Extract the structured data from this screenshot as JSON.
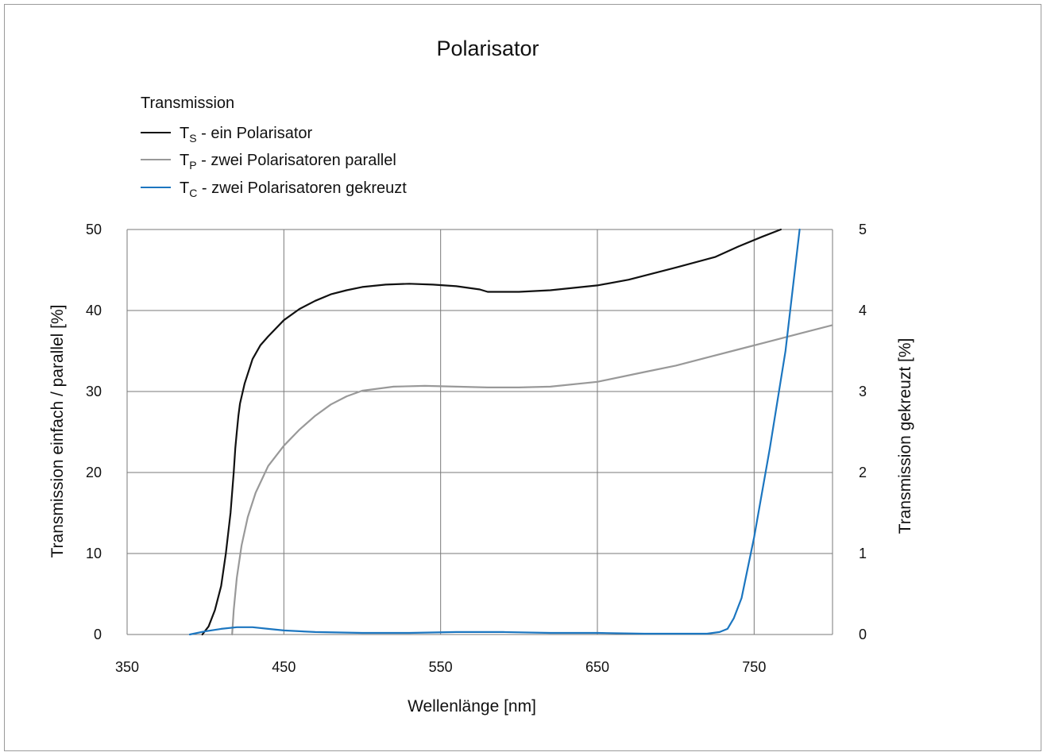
{
  "chart_data": {
    "type": "line",
    "title": "Polarisator",
    "legend_title": "Transmission",
    "legend_placement": "top-left",
    "xlabel": "Wellenlänge [nm]",
    "ylabel": "Transmission einfach / parallel [%]",
    "y2label": "Transmission gekreuzt [%]",
    "xlim": [
      350,
      800
    ],
    "ylim": [
      0,
      50
    ],
    "y2lim": [
      0,
      5
    ],
    "xticks": [
      "350",
      "450",
      "550",
      "650",
      "750"
    ],
    "yticks": [
      "0",
      "10",
      "20",
      "30",
      "40",
      "50"
    ],
    "y2ticks": [
      "0",
      "1",
      "2",
      "3",
      "4",
      "5"
    ],
    "grid": true,
    "series": [
      {
        "key": "ts",
        "main": "T",
        "sub": "S",
        "rest": " - ein Polarisator",
        "color": "#111111",
        "axis": "left",
        "x": [
          398,
          402,
          406,
          410,
          413,
          416,
          418,
          419,
          420,
          421,
          422,
          425,
          430,
          435,
          440,
          450,
          460,
          470,
          480,
          490,
          500,
          515,
          530,
          545,
          560,
          575,
          580,
          600,
          620,
          650,
          670,
          700,
          725,
          740,
          755,
          767
        ],
        "y": [
          0,
          1,
          3,
          6,
          10,
          15,
          20,
          23,
          25,
          27,
          28.5,
          31,
          34,
          35.7,
          36.8,
          38.8,
          40.2,
          41.2,
          42,
          42.5,
          42.9,
          43.2,
          43.3,
          43.2,
          43,
          42.6,
          42.3,
          42.3,
          42.5,
          43.1,
          43.8,
          45.3,
          46.6,
          47.9,
          49.1,
          50
        ]
      },
      {
        "key": "tp",
        "main": "T",
        "sub": "P",
        "rest": " - zwei Polarisatoren parallel",
        "color": "#999999",
        "axis": "left",
        "x": [
          417,
          418,
          420,
          423,
          427,
          432,
          440,
          450,
          460,
          470,
          480,
          490,
          500,
          520,
          540,
          560,
          580,
          600,
          620,
          650,
          680,
          700,
          720,
          740,
          760,
          780,
          800
        ],
        "y": [
          0,
          3,
          7,
          11,
          14.5,
          17.5,
          20.8,
          23.3,
          25.3,
          27,
          28.4,
          29.4,
          30.1,
          30.6,
          30.7,
          30.6,
          30.5,
          30.5,
          30.6,
          31.2,
          32.4,
          33.2,
          34.2,
          35.2,
          36.2,
          37.2,
          38.2
        ]
      },
      {
        "key": "tc",
        "main": "T",
        "sub": "C",
        "rest": " - zwei Polarisatoren gekreuzt",
        "color": "#1c76c0",
        "axis": "right",
        "x": [
          390,
          400,
          410,
          420,
          430,
          440,
          450,
          470,
          500,
          530,
          560,
          590,
          620,
          650,
          680,
          700,
          720,
          728,
          733,
          737,
          742,
          750,
          760,
          770,
          779
        ],
        "y": [
          0,
          0.04,
          0.07,
          0.09,
          0.09,
          0.07,
          0.05,
          0.03,
          0.02,
          0.02,
          0.03,
          0.03,
          0.02,
          0.02,
          0.01,
          0.01,
          0.01,
          0.03,
          0.07,
          0.2,
          0.45,
          1.2,
          2.3,
          3.5,
          5
        ]
      }
    ]
  }
}
